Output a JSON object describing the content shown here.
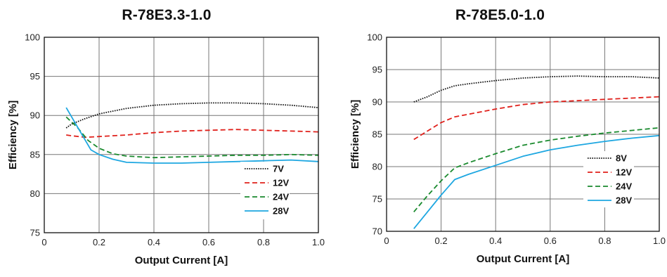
{
  "chart_data": [
    {
      "type": "line",
      "title": "R-78E3.3-1.0",
      "xlabel": "Output Current [A]",
      "ylabel": "Efficiency [%]",
      "xlim": [
        0,
        1.0
      ],
      "ylim": [
        75,
        100
      ],
      "xticks": [
        "0",
        "0.2",
        "0.4",
        "0.6",
        "0.8",
        "1.0"
      ],
      "yticks": [
        "75",
        "80",
        "85",
        "90",
        "95",
        "100"
      ],
      "grid": true,
      "legend_position": "bottom-right",
      "series": [
        {
          "name": "7V",
          "color": "#111111",
          "style": "dotted",
          "x": [
            0.08,
            0.1,
            0.15,
            0.2,
            0.3,
            0.4,
            0.5,
            0.6,
            0.7,
            0.8,
            0.9,
            1.0
          ],
          "y": [
            88.4,
            88.9,
            89.6,
            90.2,
            90.9,
            91.3,
            91.5,
            91.6,
            91.6,
            91.5,
            91.3,
            91.0
          ]
        },
        {
          "name": "12V",
          "color": "#e0201b",
          "style": "dashed",
          "x": [
            0.08,
            0.1,
            0.15,
            0.2,
            0.3,
            0.4,
            0.5,
            0.6,
            0.7,
            0.8,
            0.9,
            1.0
          ],
          "y": [
            87.5,
            87.4,
            87.2,
            87.3,
            87.5,
            87.8,
            88.0,
            88.1,
            88.2,
            88.1,
            88.0,
            87.9
          ]
        },
        {
          "name": "24V",
          "color": "#1a8a2e",
          "style": "dashed",
          "x": [
            0.08,
            0.12,
            0.16,
            0.2,
            0.25,
            0.3,
            0.4,
            0.5,
            0.6,
            0.7,
            0.8,
            0.9,
            1.0
          ],
          "y": [
            89.8,
            88.5,
            86.8,
            85.8,
            85.1,
            84.8,
            84.6,
            84.7,
            84.8,
            84.9,
            84.9,
            85.0,
            84.9
          ]
        },
        {
          "name": "28V",
          "color": "#1ea7e1",
          "style": "solid",
          "x": [
            0.08,
            0.12,
            0.17,
            0.2,
            0.25,
            0.3,
            0.4,
            0.5,
            0.6,
            0.7,
            0.8,
            0.9,
            1.0
          ],
          "y": [
            91.0,
            88.6,
            85.6,
            85.0,
            84.4,
            84.0,
            83.9,
            83.9,
            84.0,
            84.1,
            84.2,
            84.3,
            84.1
          ]
        }
      ]
    },
    {
      "type": "line",
      "title": "R-78E5.0-1.0",
      "xlabel": "Output Current [A]",
      "ylabel": "Efficiency [%]",
      "xlim": [
        0,
        1.0
      ],
      "ylim": [
        70,
        100
      ],
      "xticks": [
        "0",
        "0.2",
        "0.4",
        "0.6",
        "0.8",
        "1.0"
      ],
      "yticks": [
        "70",
        "75",
        "80",
        "85",
        "90",
        "95",
        "100"
      ],
      "grid": true,
      "legend_position": "bottom-right",
      "series": [
        {
          "name": "8V",
          "color": "#111111",
          "style": "dotted",
          "x": [
            0.1,
            0.15,
            0.2,
            0.25,
            0.3,
            0.4,
            0.5,
            0.6,
            0.7,
            0.8,
            0.9,
            1.0
          ],
          "y": [
            90.0,
            90.8,
            91.8,
            92.5,
            92.8,
            93.3,
            93.7,
            93.9,
            94.0,
            93.9,
            93.9,
            93.7
          ]
        },
        {
          "name": "12V",
          "color": "#e0201b",
          "style": "dashed",
          "x": [
            0.1,
            0.15,
            0.2,
            0.25,
            0.3,
            0.4,
            0.5,
            0.6,
            0.7,
            0.8,
            0.9,
            1.0
          ],
          "y": [
            84.2,
            85.5,
            86.8,
            87.7,
            88.1,
            88.9,
            89.6,
            90.0,
            90.2,
            90.4,
            90.6,
            90.8
          ]
        },
        {
          "name": "24V",
          "color": "#1a8a2e",
          "style": "dashed",
          "x": [
            0.1,
            0.15,
            0.2,
            0.25,
            0.3,
            0.4,
            0.5,
            0.6,
            0.7,
            0.8,
            0.9,
            1.0
          ],
          "y": [
            73.0,
            75.5,
            77.8,
            79.8,
            80.6,
            82.0,
            83.3,
            84.1,
            84.7,
            85.2,
            85.6,
            86.0
          ]
        },
        {
          "name": "28V",
          "color": "#1ea7e1",
          "style": "solid",
          "x": [
            0.1,
            0.15,
            0.2,
            0.25,
            0.3,
            0.4,
            0.5,
            0.6,
            0.7,
            0.8,
            0.9,
            1.0
          ],
          "y": [
            70.4,
            73.0,
            75.6,
            78.0,
            78.8,
            80.2,
            81.6,
            82.6,
            83.3,
            83.9,
            84.4,
            84.8
          ]
        }
      ]
    }
  ]
}
